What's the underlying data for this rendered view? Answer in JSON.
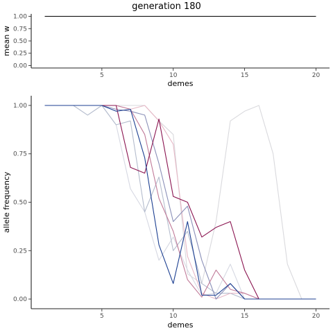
{
  "title": "generation 180",
  "chart_data": [
    {
      "type": "line",
      "xlabel": "demes",
      "ylabel": "mean w",
      "xlim": [
        0.05,
        20.95
      ],
      "ylim": [
        -0.05,
        1.05
      ],
      "x_ticks": [
        5,
        10,
        15,
        20
      ],
      "y_ticks": [
        0.0,
        0.25,
        0.5,
        0.75,
        1.0
      ],
      "y_tick_labels": [
        "0.00",
        "0.25",
        "0.50",
        "0.75",
        "1.00"
      ],
      "grid": false,
      "series": [
        {
          "color": "#000000",
          "x": [
            1,
            2,
            3,
            4,
            5,
            6,
            7,
            8,
            9,
            10,
            11,
            12,
            13,
            14,
            15,
            16,
            17,
            18,
            19,
            20
          ],
          "values": [
            1,
            1,
            1,
            1,
            1,
            1,
            1,
            1,
            1,
            1,
            1,
            1,
            1,
            1,
            1,
            1,
            1,
            1,
            1,
            1
          ]
        }
      ]
    },
    {
      "type": "line",
      "xlabel": "demes",
      "ylabel": "allele frequency",
      "xlim": [
        0.05,
        20.95
      ],
      "ylim": [
        -0.05,
        1.05
      ],
      "x_ticks": [
        5,
        10,
        15,
        20
      ],
      "y_ticks": [
        0.0,
        0.25,
        0.5,
        0.75,
        1.0
      ],
      "y_tick_labels": [
        "0.00",
        "0.25",
        "0.50",
        "0.75",
        "1.00"
      ],
      "grid": false,
      "series": [
        {
          "color": "#d9d9dd",
          "x": [
            1,
            2,
            3,
            4,
            5,
            6,
            7,
            8,
            9,
            10,
            11,
            12,
            13,
            14,
            15,
            16,
            17,
            18,
            19,
            20
          ],
          "values": [
            1,
            1,
            1,
            1,
            1,
            1,
            1,
            1,
            0.92,
            0.85,
            0.13,
            0.08,
            0.4,
            0.92,
            0.97,
            1,
            0.75,
            0.18,
            0,
            0
          ]
        },
        {
          "color": "#d6d8e2",
          "x": [
            1,
            2,
            3,
            4,
            5,
            6,
            7,
            8,
            9,
            10,
            11,
            12,
            13,
            14,
            15,
            16,
            17,
            18,
            19,
            20
          ],
          "values": [
            1,
            1,
            1,
            1,
            1,
            0.9,
            0.57,
            0.45,
            0.2,
            0.32,
            0.15,
            0.02,
            0.03,
            0.18,
            0,
            0,
            0,
            0,
            0,
            0
          ]
        },
        {
          "color": "#b4bccd",
          "x": [
            1,
            2,
            3,
            4,
            5,
            6,
            7,
            8,
            9,
            10,
            11,
            12,
            13,
            14,
            15,
            16,
            17,
            18,
            19,
            20
          ],
          "values": [
            1,
            1,
            1,
            0.95,
            1,
            0.9,
            0.92,
            0.45,
            0.63,
            0.25,
            0.35,
            0.08,
            0.03,
            0.03,
            0,
            0,
            0,
            0,
            0,
            0
          ]
        },
        {
          "color": "#e6b8c6",
          "x": [
            1,
            2,
            3,
            4,
            5,
            6,
            7,
            8,
            9,
            10,
            11,
            12,
            13,
            14,
            15,
            16,
            17,
            18,
            19,
            20
          ],
          "values": [
            1,
            1,
            1,
            1,
            1,
            1,
            0.98,
            1,
            0.92,
            0.8,
            0.22,
            0.03,
            0,
            0.03,
            0.03,
            0,
            0,
            0,
            0,
            0
          ]
        },
        {
          "color": "#8b90b8",
          "x": [
            1,
            2,
            3,
            4,
            5,
            6,
            7,
            8,
            9,
            10,
            11,
            12,
            13,
            14,
            15,
            16,
            17,
            18,
            19,
            20
          ],
          "values": [
            1,
            1,
            1,
            1,
            1,
            0.98,
            0.97,
            0.95,
            0.7,
            0.4,
            0.48,
            0.2,
            0,
            0.08,
            0,
            0,
            0,
            0,
            0,
            0
          ]
        },
        {
          "color": "#c07a98",
          "x": [
            1,
            2,
            3,
            4,
            5,
            6,
            7,
            8,
            9,
            10,
            11,
            12,
            13,
            14,
            15,
            16,
            17,
            18,
            19,
            20
          ],
          "values": [
            1,
            1,
            1,
            1,
            1,
            1,
            0.98,
            0.85,
            0.52,
            0.35,
            0.1,
            0.01,
            0.15,
            0.05,
            0.03,
            0,
            0,
            0,
            0,
            0
          ]
        },
        {
          "color": "#8a1450",
          "x": [
            1,
            2,
            3,
            4,
            5,
            6,
            7,
            8,
            9,
            10,
            11,
            12,
            13,
            14,
            15,
            16,
            17,
            18,
            19,
            20
          ],
          "values": [
            1,
            1,
            1,
            1,
            1,
            1,
            0.68,
            0.65,
            0.93,
            0.53,
            0.5,
            0.32,
            0.37,
            0.4,
            0.15,
            0,
            0,
            0,
            0,
            0
          ]
        },
        {
          "color": "#1c3f91",
          "x": [
            1,
            2,
            3,
            4,
            5,
            6,
            7,
            8,
            9,
            10,
            11,
            12,
            13,
            14,
            15,
            16,
            17,
            18,
            19,
            20
          ],
          "values": [
            1,
            1,
            1,
            1,
            1,
            0.97,
            0.98,
            0.73,
            0.28,
            0.08,
            0.4,
            0.02,
            0.02,
            0.08,
            0,
            0,
            0,
            0,
            0,
            0
          ]
        }
      ]
    }
  ]
}
